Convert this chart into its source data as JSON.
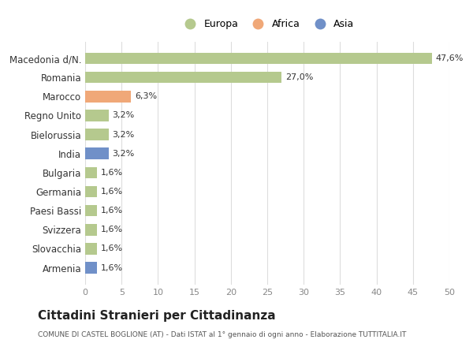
{
  "categories": [
    "Macedonia d/N.",
    "Romania",
    "Marocco",
    "Regno Unito",
    "Bielorussia",
    "India",
    "Bulgaria",
    "Germania",
    "Paesi Bassi",
    "Svizzera",
    "Slovacchia",
    "Armenia"
  ],
  "values": [
    47.6,
    27.0,
    6.3,
    3.2,
    3.2,
    3.2,
    1.6,
    1.6,
    1.6,
    1.6,
    1.6,
    1.6
  ],
  "labels": [
    "47,6%",
    "27,0%",
    "6,3%",
    "3,2%",
    "3,2%",
    "3,2%",
    "1,6%",
    "1,6%",
    "1,6%",
    "1,6%",
    "1,6%",
    "1,6%"
  ],
  "colors": [
    "#b5c98e",
    "#b5c98e",
    "#f0a878",
    "#b5c98e",
    "#b5c98e",
    "#7090c8",
    "#b5c98e",
    "#b5c98e",
    "#b5c98e",
    "#b5c98e",
    "#b5c98e",
    "#7090c8"
  ],
  "legend_labels": [
    "Europa",
    "Africa",
    "Asia"
  ],
  "legend_colors": [
    "#b5c98e",
    "#f0a878",
    "#7090c8"
  ],
  "title": "Cittadini Stranieri per Cittadinanza",
  "subtitle": "COMUNE DI CASTEL BOGLIONE (AT) - Dati ISTAT al 1° gennaio di ogni anno - Elaborazione TUTTITALIA.IT",
  "xlim": [
    0,
    50
  ],
  "xticks": [
    0,
    5,
    10,
    15,
    20,
    25,
    30,
    35,
    40,
    45,
    50
  ],
  "background_color": "#ffffff",
  "grid_color": "#dddddd"
}
